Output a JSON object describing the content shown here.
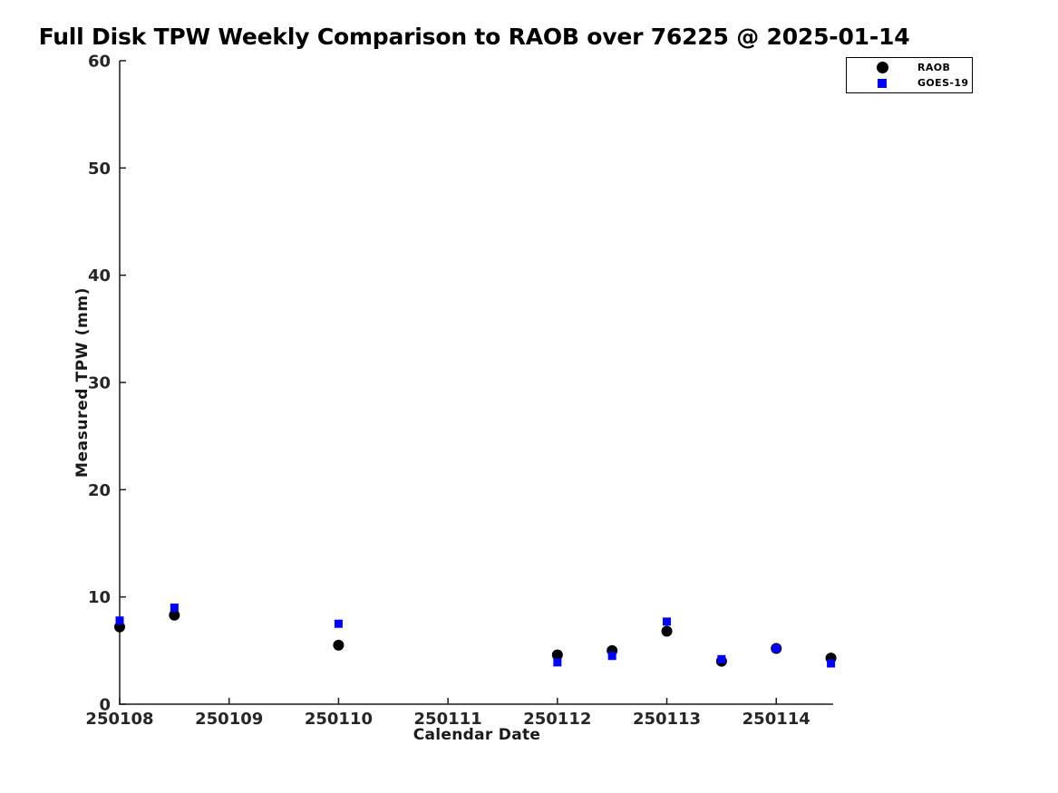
{
  "chart_data": {
    "type": "scatter",
    "title": "Full Disk TPW Weekly Comparison to RAOB over 76225 @ 2025-01-14",
    "xlabel": "Calendar Date",
    "ylabel": "Measured TPW (mm)",
    "xlim": [
      250108,
      250114.52
    ],
    "ylim": [
      0,
      60
    ],
    "xtick_values": [
      250108,
      250109,
      250110,
      250111,
      250112,
      250113,
      250114
    ],
    "xtick_labels": [
      "250108",
      "250109",
      "250110",
      "250111",
      "250112",
      "250113",
      "250114"
    ],
    "ytick_values": [
      0,
      10,
      20,
      30,
      40,
      50,
      60
    ],
    "ytick_labels": [
      "0",
      "10",
      "20",
      "30",
      "40",
      "50",
      "60"
    ],
    "grid": false,
    "legend_position": "outside-top-right",
    "axis_color": "#1a1a1a",
    "tick_label_color": "#262626",
    "series": [
      {
        "name": "RAOB",
        "marker": "circle",
        "color": "#000000",
        "marker_size": 12,
        "x": [
          250108,
          250108.5,
          250110,
          250112,
          250112.5,
          250113,
          250113.5,
          250114,
          250114.5
        ],
        "y": [
          7.2,
          8.3,
          5.5,
          4.6,
          5.0,
          6.8,
          4.0,
          5.2,
          4.3
        ]
      },
      {
        "name": "GOES-19",
        "marker": "square",
        "color": "#0000FF",
        "marker_size": 9,
        "x": [
          250108,
          250108.5,
          250110,
          250112,
          250112.5,
          250113,
          250113.5,
          250114,
          250114.5
        ],
        "y": [
          7.8,
          9.0,
          7.5,
          3.9,
          4.5,
          7.7,
          4.2,
          5.2,
          3.8
        ]
      }
    ]
  },
  "legend": {
    "items": [
      {
        "label": "RAOB",
        "marker": "circle-icon",
        "color": "#000000"
      },
      {
        "label": "GOES-19",
        "marker": "square-icon",
        "color": "#0000FF"
      }
    ]
  }
}
